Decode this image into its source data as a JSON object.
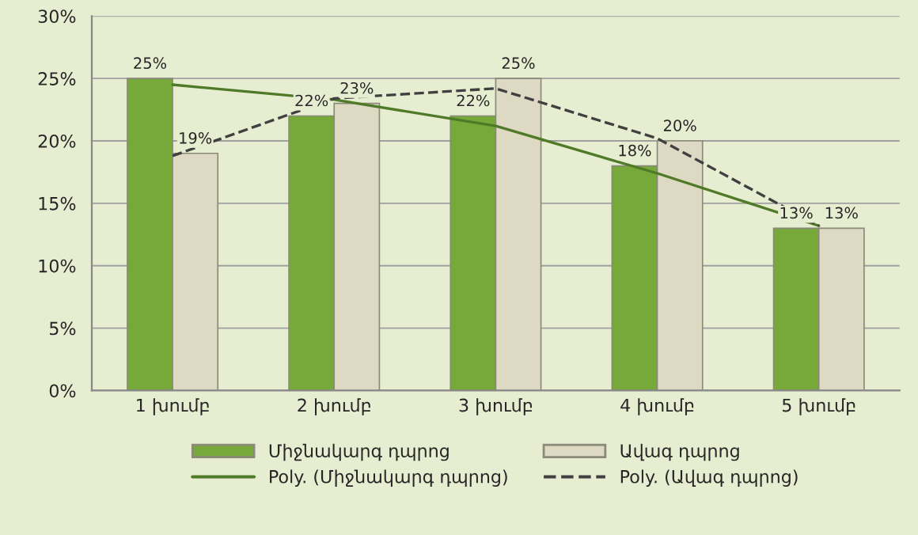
{
  "chart_data": {
    "type": "bar",
    "categories": [
      "1 խումբ",
      "2 խումբ",
      "3 խումբ",
      "4 խումբ",
      "5 խումբ"
    ],
    "series": [
      {
        "name": "Միջնակարգ դպրոց",
        "color": "#77a83a",
        "values": [
          25,
          22,
          22,
          18,
          13
        ],
        "value_labels": [
          "25%",
          "22%",
          "22%",
          "18%",
          "13%"
        ]
      },
      {
        "name": "Ավագ դպրոց",
        "color": "#ded9c3",
        "values": [
          19,
          23,
          25,
          20,
          13
        ],
        "value_labels": [
          "19%",
          "23%",
          "25%",
          "20%",
          "13%"
        ]
      },
      {
        "name": "Poly. (Միջնակարգ դպրոց)",
        "type": "line",
        "line_style": "solid",
        "color": "#4f7a28",
        "values": [
          24.5,
          23.3,
          21.2,
          17.4,
          13.2
        ]
      },
      {
        "name": "Poly. (Ավագ դպրոց)",
        "type": "line",
        "line_style": "dashed",
        "color": "#404040",
        "values": [
          18.8,
          23.4,
          24.2,
          20.2,
          13.2
        ]
      }
    ],
    "ylim": [
      0,
      30
    ],
    "yticks": [
      {
        "value": 0,
        "label": "0%"
      },
      {
        "value": 5,
        "label": "5%"
      },
      {
        "value": 10,
        "label": "10%"
      },
      {
        "value": 15,
        "label": "15%"
      },
      {
        "value": 20,
        "label": "20%"
      },
      {
        "value": 25,
        "label": "25%"
      },
      {
        "value": 30,
        "label": "30%"
      }
    ],
    "grid": "y",
    "legend": "bottom"
  }
}
